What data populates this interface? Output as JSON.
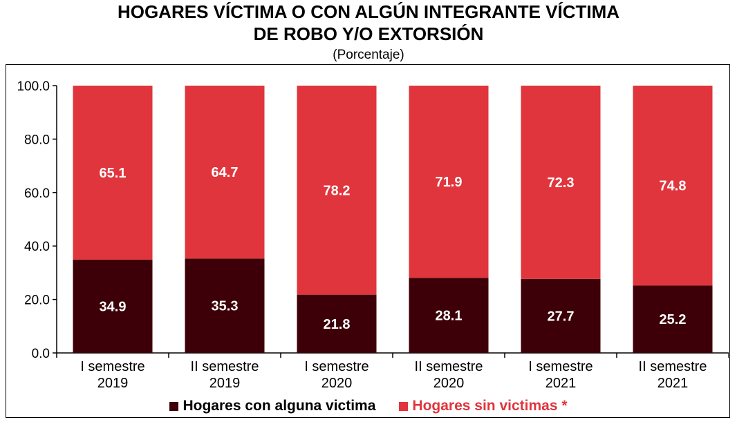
{
  "title_line1": "HOGARES VÍCTIMA O CON ALGÚN INTEGRANTE VÍCTIMA",
  "title_line2": "DE ROBO Y/O EXTORSIÓN",
  "subtitle": "(Porcentaje)",
  "colors": {
    "con_victima": "#3d0008",
    "sin_victimas": "#e0353c",
    "legend_sin_text": "#e0353c"
  },
  "chart_data": {
    "type": "bar",
    "stacked": true,
    "categories": [
      [
        "I semestre",
        "2019"
      ],
      [
        "II semestre",
        "2019"
      ],
      [
        "I semestre",
        "2020"
      ],
      [
        "II semestre",
        "2020"
      ],
      [
        "I semestre",
        "2021"
      ],
      [
        "II semestre",
        "2021"
      ]
    ],
    "series": [
      {
        "name": "Hogares con alguna victima",
        "values": [
          34.9,
          35.3,
          21.8,
          28.1,
          27.7,
          25.2
        ]
      },
      {
        "name": "Hogares sin victimas *",
        "values": [
          65.1,
          64.7,
          78.2,
          71.9,
          72.3,
          74.8
        ]
      }
    ],
    "y_ticks": [
      "0.0",
      "20.0",
      "40.0",
      "60.0",
      "80.0",
      "100.0"
    ],
    "ylim": [
      0,
      100
    ],
    "grid": false,
    "legend_position": "bottom"
  }
}
